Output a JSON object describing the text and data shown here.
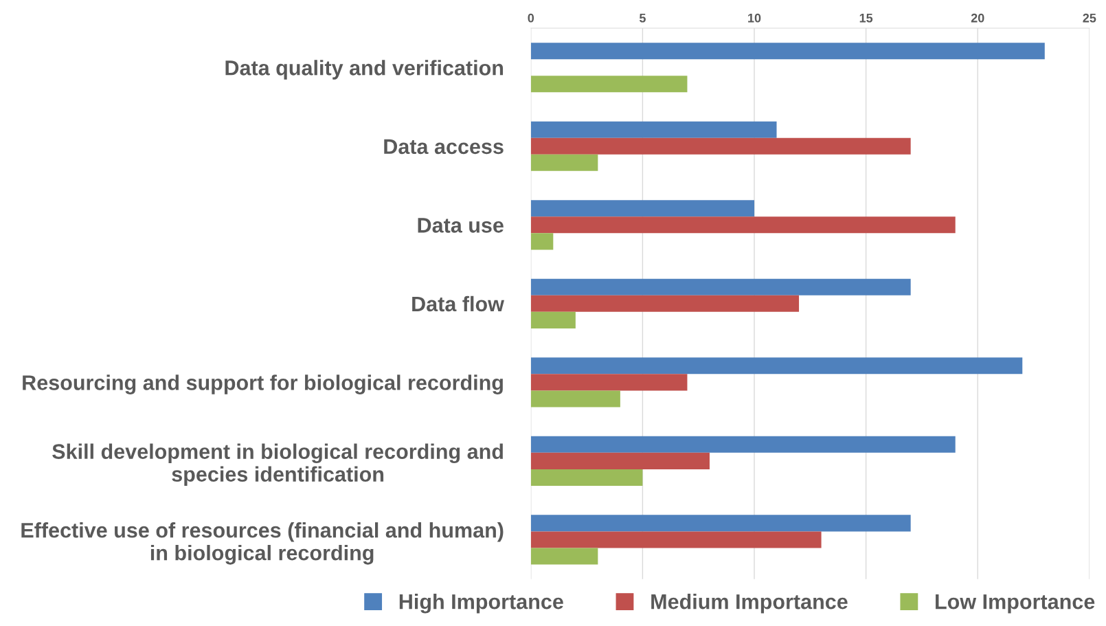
{
  "chart_data": {
    "type": "bar",
    "orientation": "horizontal",
    "categories": [
      "Data quality and verification",
      "Data access",
      "Data use",
      "Data flow",
      "Resourcing and support for biological recording",
      "Skill development in biological recording and species identification",
      "Effective use of resources (financial and human) in biological recording"
    ],
    "series": [
      {
        "name": "High Importance",
        "color": "#4f81bd",
        "values": [
          23,
          11,
          10,
          17,
          22,
          19,
          17
        ]
      },
      {
        "name": "Medium Importance",
        "color": "#c0504d",
        "values": [
          null,
          17,
          19,
          12,
          7,
          8,
          13
        ]
      },
      {
        "name": "Low Importance",
        "color": "#9bbb59",
        "values": [
          7,
          3,
          1,
          2,
          4,
          5,
          3
        ]
      }
    ],
    "xlim": [
      0,
      25
    ],
    "xticks": [
      0,
      5,
      10,
      15,
      20,
      25
    ],
    "grid": "x",
    "legend": "bottom"
  }
}
